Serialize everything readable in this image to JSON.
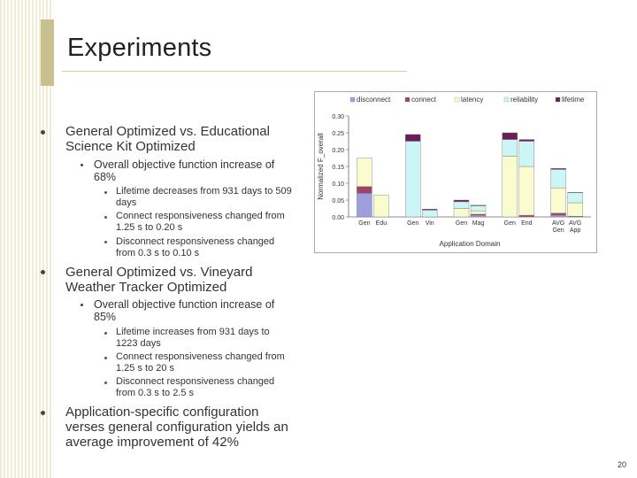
{
  "slide": {
    "title": "Experiments",
    "page_number": "20"
  },
  "bullets": [
    {
      "text": "General Optimized vs. Educational Science Kit Optimized",
      "sub": [
        {
          "text": "Overall objective function increase of 68%",
          "sub": [
            "Lifetime decreases from 931 days to 509 days",
            "Connect responsiveness changed from 1.25 s to 0.20 s",
            "Disconnect responsiveness changed from 0.3 s to 0.10 s"
          ]
        }
      ]
    },
    {
      "text": "General Optimized vs. Vineyard Weather Tracker Optimized",
      "sub": [
        {
          "text": "Overall objective function increase of 85%",
          "sub": [
            "Lifetime increases from 931 days to 1223 days",
            "Connect responsiveness changed from 1.25 s to 20 s",
            "Disconnect responsiveness changed from 0.3 s to 2.5 s"
          ]
        }
      ]
    },
    {
      "text": "Application-specific configuration verses general configuration yields an average improvement of 42%",
      "sub": []
    }
  ],
  "chart_data": {
    "type": "bar",
    "stacked": true,
    "title": "",
    "xlabel": "Application Domain",
    "ylabel": "Normalized F_overall",
    "ylim": [
      0,
      0.3
    ],
    "yticks": [
      "0.00",
      "0.05",
      "0.10",
      "0.15",
      "0.20",
      "0.25",
      "0.30"
    ],
    "categories": [
      "Gen",
      "Edu",
      "Gen",
      "Vin",
      "Gen",
      "Mag",
      "Gen",
      "End",
      "AVG Gen",
      "AVG App"
    ],
    "category_labels": [
      [
        "Gen",
        "Edu"
      ],
      [
        "Gen",
        "Vin"
      ],
      [
        "Gen",
        "Mag"
      ],
      [
        "Gen",
        "End"
      ],
      [
        "AVG Gen",
        "AVG App"
      ]
    ],
    "legend_position": "top",
    "series": [
      {
        "name": "disconnect",
        "color": "#9f9fe0",
        "values": [
          0.07,
          0.0,
          0.0,
          0.0,
          0.0,
          0.005,
          0.0,
          0.0,
          0.005,
          0.0
        ]
      },
      {
        "name": "connect",
        "color": "#9e4466",
        "values": [
          0.02,
          0.0,
          0.0,
          0.0,
          0.0,
          0.003,
          0.0,
          0.005,
          0.006,
          0.002
        ]
      },
      {
        "name": "latency",
        "color": "#fbfbd0",
        "values": [
          0.085,
          0.065,
          0.0,
          0.0,
          0.025,
          0.01,
          0.18,
          0.145,
          0.075,
          0.04
        ]
      },
      {
        "name": "reliability",
        "color": "#ccf5f5",
        "values": [
          0.0,
          0.0,
          0.225,
          0.02,
          0.02,
          0.015,
          0.05,
          0.075,
          0.055,
          0.03
        ]
      },
      {
        "name": "lifetime",
        "color": "#6a1e58",
        "values": [
          0.0,
          0.0,
          0.02,
          0.003,
          0.005,
          0.002,
          0.02,
          0.005,
          0.003,
          0.001
        ]
      }
    ]
  }
}
